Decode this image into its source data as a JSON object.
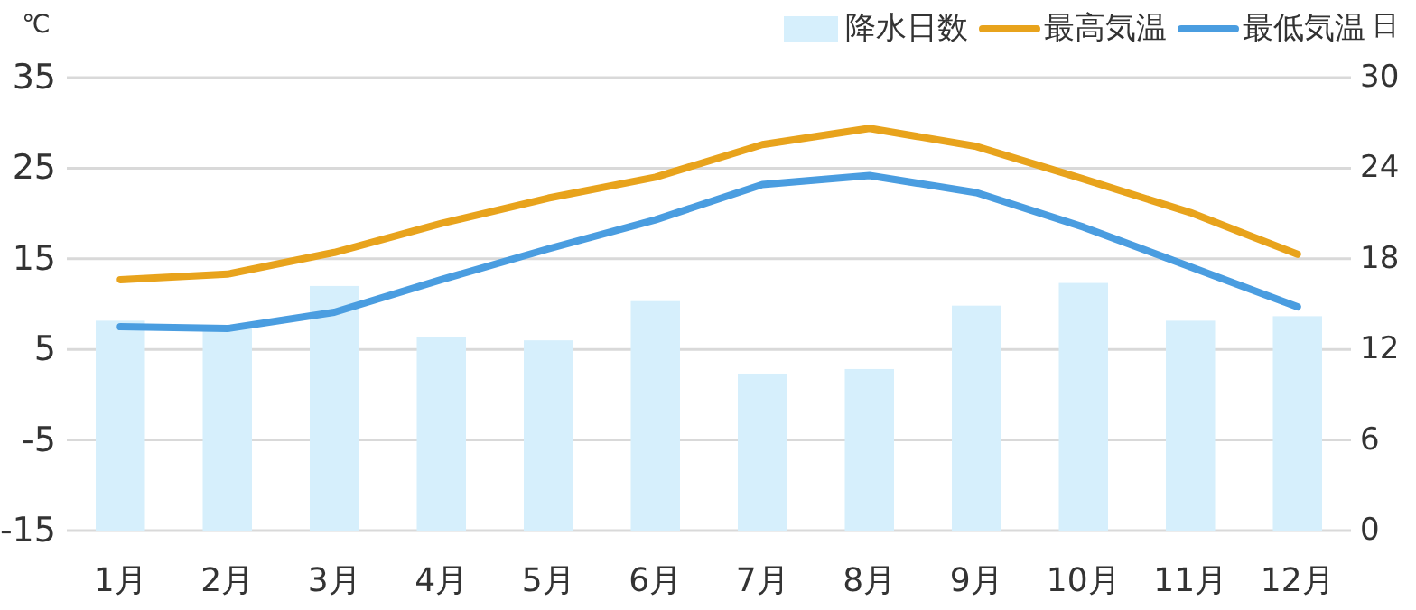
{
  "chart_data": {
    "type": "bar",
    "ylabel": "℃",
    "y2label": "日",
    "categories": [
      "1月",
      "2月",
      "3月",
      "4月",
      "5月",
      "6月",
      "7月",
      "8月",
      "9月",
      "10月",
      "11月",
      "12月"
    ],
    "series": [
      {
        "name": "降水日数",
        "axis": "y2",
        "color": "#d6effc",
        "values": [
          13.9,
          13.6,
          16.2,
          12.8,
          12.6,
          15.2,
          10.4,
          10.7,
          14.9,
          16.4,
          13.9,
          14.2
        ]
      },
      {
        "name": "最高気温",
        "type": "line",
        "color": "#e8a31c",
        "values": [
          12.7,
          13.3,
          15.7,
          18.9,
          21.7,
          24.0,
          27.6,
          29.4,
          27.4,
          23.8,
          20.1,
          15.5
        ]
      },
      {
        "name": "最低気温",
        "type": "line",
        "color": "#4a9de0",
        "values": [
          7.5,
          7.3,
          9.1,
          12.7,
          16.1,
          19.3,
          23.2,
          24.2,
          22.3,
          18.5,
          14.1,
          9.7
        ]
      }
    ],
    "ylim": [
      -15,
      35
    ],
    "yticks": [
      -15,
      -5,
      5,
      15,
      25,
      35
    ],
    "y2lim": [
      0,
      30
    ],
    "y2ticks": [
      0,
      6,
      12,
      18,
      24,
      30
    ],
    "grid": "y",
    "legend": "top right",
    "marker": "none",
    "line_style": "solid"
  }
}
